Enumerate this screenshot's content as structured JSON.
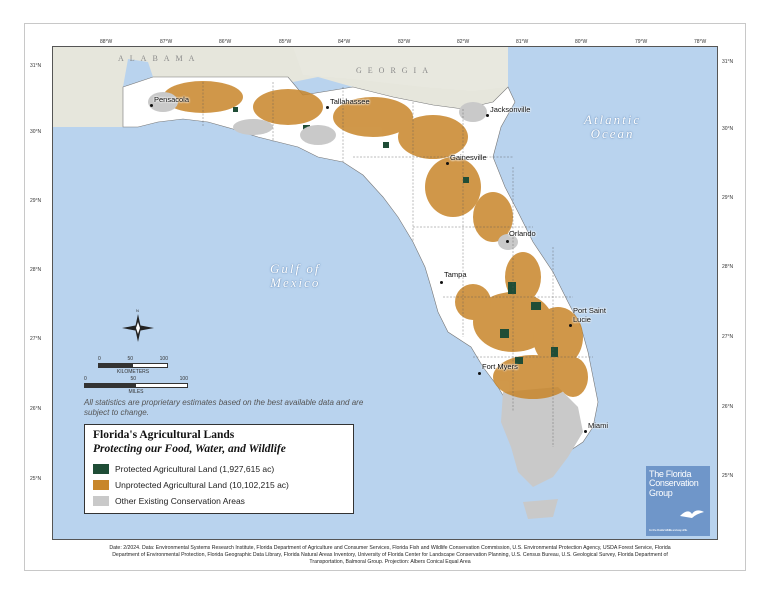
{
  "map": {
    "longitude_ticks": [
      "88°W",
      "87°W",
      "86°W",
      "85°W",
      "84°W",
      "83°W",
      "82°W",
      "81°W",
      "80°W",
      "79°W",
      "78°W"
    ],
    "latitude_ticks": [
      "31°N",
      "30°N",
      "29°N",
      "28°N",
      "27°N",
      "26°N",
      "25°N"
    ],
    "water_labels": {
      "atlantic_line1": "Atlantic",
      "atlantic_line2": "Ocean",
      "gulf_line1": "Gulf of",
      "gulf_line2": "Mexico"
    },
    "states": {
      "alabama": "ALABAMA",
      "georgia": "GEORGIA"
    },
    "cities": [
      "Pensacola",
      "Tallahassee",
      "Jacksonville",
      "Gainesville",
      "Orlando",
      "Tampa",
      "Port Saint",
      "Lucie",
      "Fort Myers",
      "Miami"
    ],
    "compass": "N"
  },
  "scale": {
    "km_ticks": [
      "0",
      "50",
      "100"
    ],
    "km_label": "KILOMETERS",
    "mi_ticks": [
      "0",
      "50",
      "100"
    ],
    "mi_label": "MILES"
  },
  "disclaimer": "All statistics are proprietary estimates based on the best available data and are subject to change.",
  "legend": {
    "title": "Florida's Agricultural Lands",
    "subtitle": "Protecting our Food, Water, and Wildlife",
    "items": [
      {
        "label": "Protected Agricultural Land (1,927,615 ac)",
        "color": "#1f4d36"
      },
      {
        "label": "Unprotected Agricultural Land (10,102,215 ac)",
        "color": "#c8862a"
      },
      {
        "label": "Other Existing Conservation Areas",
        "color": "#c9c9c9"
      }
    ]
  },
  "logo": {
    "line1": "The Florida",
    "line2": "Conservation",
    "line3": "Group",
    "tagline": "For the Florida Wildlife and way of life"
  },
  "footer": {
    "line1": "Date: 2/2024.  Data: Environmental Systems Research Institute, Florida Department of Agriculture and Consumer Services, Florida Fish and Wildlife Conservation Commission, U.S. Environmental Protection Agency, USDA Forest Service, Florida",
    "line2": "Department of Environmental Protection, Florida Geographic Data Library, Florida Natural Areas Inventory, University of Florida Center for Landscape Conservation Planning, U.S. Census Bureau, U.S. Geological Survey, Florida Department of",
    "line3": "Transportation, Balmoral Group.  Projection: Albers Conical Equal Area"
  }
}
